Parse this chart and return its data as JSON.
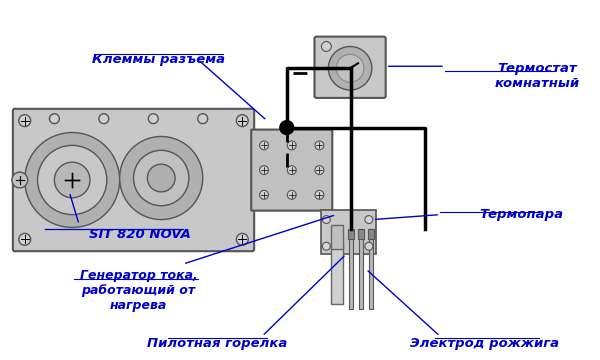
{
  "bg_color": "#f0f4f8",
  "text_color": "#0000cc",
  "line_color": "#000000",
  "fig_width": 6.0,
  "fig_height": 3.6,
  "labels": {
    "pilot_burner": "Пилотная горелка",
    "electrode": "Электрод рожжига",
    "generator": "Генератор тока,\nработающий от\nнагрева",
    "thermocouple": "Термопара",
    "sit820": "SIT 820 NOVA",
    "terminals": "Клеммы разъема",
    "thermostat": "Термостат\nкомнатный"
  }
}
